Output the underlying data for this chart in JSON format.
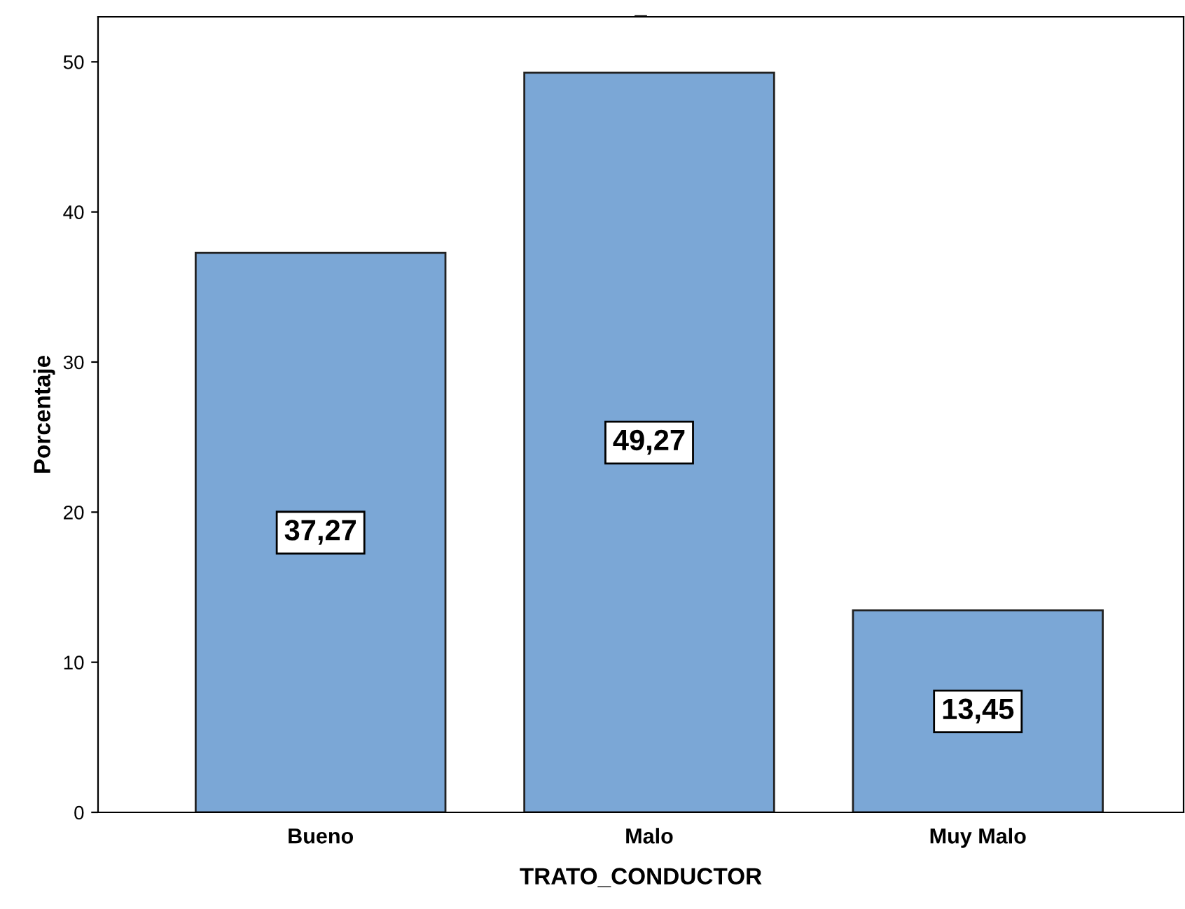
{
  "chart_data": {
    "type": "bar",
    "title": "_",
    "xlabel": "TRATO_CONDUCTOR",
    "ylabel": "Porcentaje",
    "categories": [
      "Bueno",
      "Malo",
      "Muy Malo"
    ],
    "values": [
      37.27,
      49.27,
      13.45
    ],
    "value_labels": [
      "37,27",
      "49,27",
      "13,45"
    ],
    "color": "#7ba7d6",
    "ylim": [
      0,
      53
    ],
    "yticks": [
      0,
      10,
      20,
      30,
      40,
      50
    ],
    "grid": false,
    "legend": false
  }
}
